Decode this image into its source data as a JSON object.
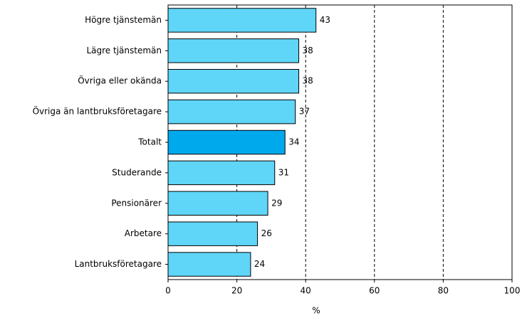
{
  "chart_data": {
    "type": "barh",
    "categories": [
      "Högre tjänstemän",
      "Lägre tjänstemän",
      "Övriga eller okända",
      "Övriga än lantbruksföretagare",
      "Totalt",
      "Studerande",
      "Pensionärer",
      "Arbetare",
      "Lantbruksföretagare"
    ],
    "values": [
      43,
      38,
      38,
      37,
      34,
      31,
      29,
      26,
      24
    ],
    "colors": [
      "#5fd5f8",
      "#5fd5f8",
      "#5fd5f8",
      "#5fd5f8",
      "#00a8ec",
      "#5fd5f8",
      "#5fd5f8",
      "#5fd5f8",
      "#5fd5f8"
    ],
    "xlabel": "%",
    "xlim": [
      0,
      100
    ],
    "xticks": [
      0,
      20,
      40,
      60,
      80,
      100
    ],
    "grid": true
  }
}
